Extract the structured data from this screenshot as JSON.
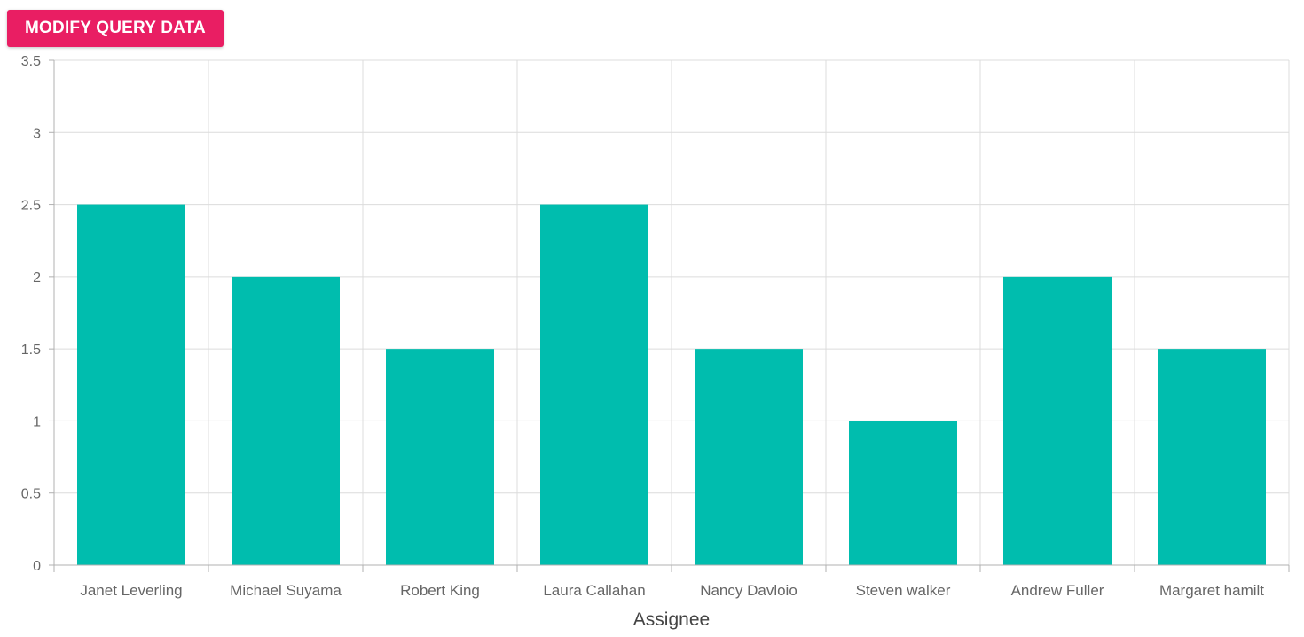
{
  "toolbar": {
    "modify_button_label": "MODIFY QUERY DATA"
  },
  "colors": {
    "bar": "#00bdae",
    "button": "#e91e63",
    "grid": "#dcdcdc",
    "axis": "#b0b0b0",
    "tick_text": "#666666",
    "axis_title_text": "#444444"
  },
  "chart_data": {
    "type": "bar",
    "title": "",
    "xlabel": "Assignee",
    "ylabel": "",
    "ylim": [
      0,
      3.5
    ],
    "yticks": [
      "0",
      "0.5",
      "1",
      "1.5",
      "2",
      "2.5",
      "3",
      "3.5"
    ],
    "grid": true,
    "categories": [
      "Janet Leverling",
      "Michael Suyama",
      "Robert King",
      "Laura Callahan",
      "Nancy Davloio",
      "Steven walker",
      "Andrew Fuller",
      "Margaret hamilt"
    ],
    "values": [
      2.5,
      2,
      1.5,
      2.5,
      1.5,
      1,
      2,
      1.5
    ]
  }
}
